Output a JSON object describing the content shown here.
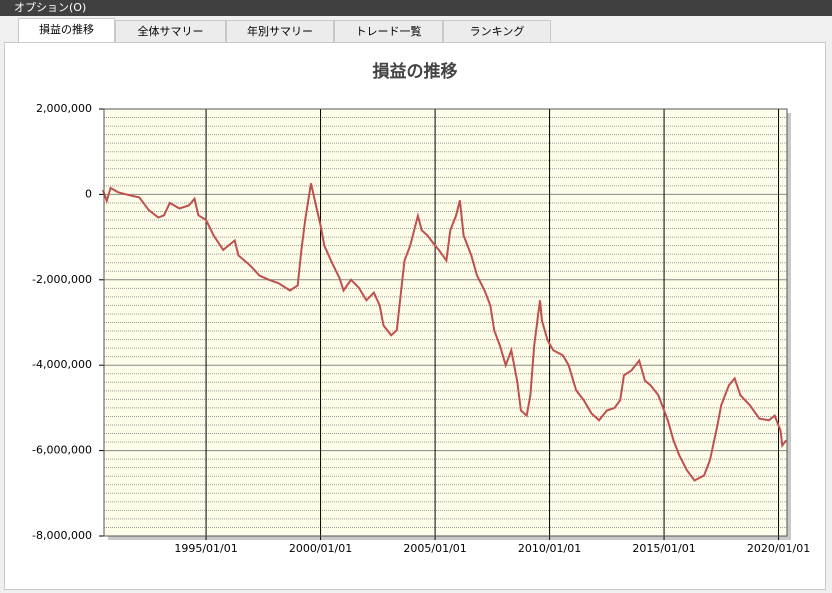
{
  "menu": {
    "label": "オプション(O)"
  },
  "tabs": [
    "損益の推移",
    "全体サマリー",
    "年別サマリー",
    "トレード一覧",
    "ランキング"
  ],
  "chart_data": {
    "type": "line",
    "title": "損益の推移",
    "color": "#c0504d",
    "x": [
      "1990/07/01",
      "1990/09/01",
      "1990/11/01",
      "1991/03/01",
      "1991/09/01",
      "1992/02/01",
      "1992/07/01",
      "1992/12/01",
      "1993/03/01",
      "1993/06/01",
      "1993/11/01",
      "1994/04/01",
      "1994/07/01",
      "1994/09/01",
      "1995/01/01",
      "1995/05/01",
      "1995/10/01",
      "1996/04/01",
      "1996/06/01",
      "1996/12/01",
      "1997/05/01",
      "1997/10/01",
      "1998/03/01",
      "1998/09/01",
      "1999/01/01",
      "1999/03/01",
      "1999/05/01",
      "1999/08/01",
      "1999/10/01",
      "2000/01/01",
      "2000/03/01",
      "2000/07/01",
      "2000/11/01",
      "2001/01/01",
      "2001/05/01",
      "2001/09/01",
      "2002/01/01",
      "2002/05/01",
      "2002/08/01",
      "2002/10/01",
      "2003/02/01",
      "2003/05/01",
      "2003/07/01",
      "2003/09/01",
      "2003/12/01",
      "2004/04/01",
      "2004/06/01",
      "2004/09/01",
      "2005/01/01",
      "2005/03/01",
      "2005/07/01",
      "2005/09/01",
      "2005/12/01",
      "2006/02/01",
      "2006/04/01",
      "2006/08/01",
      "2006/11/01",
      "2007/03/01",
      "2007/06/01",
      "2007/08/01",
      "2007/11/01",
      "2008/02/01",
      "2008/05/01",
      "2008/08/01",
      "2008/10/01",
      "2009/01/01",
      "2009/03/01",
      "2009/05/01",
      "2009/08/01",
      "2009/09/01",
      "2009/12/01",
      "2010/03/01",
      "2010/08/01",
      "2010/11/01",
      "2011/03/01",
      "2011/07/01",
      "2011/11/01",
      "2012/03/01",
      "2012/07/01",
      "2012/11/01",
      "2013/02/01",
      "2013/04/01",
      "2013/08/01",
      "2013/12/01",
      "2014/03/01",
      "2014/06/01",
      "2014/10/01",
      "2015/03/01",
      "2015/06/01",
      "2015/09/01",
      "2016/01/01",
      "2016/05/01",
      "2016/10/01",
      "2017/01/01",
      "2017/05/01",
      "2017/07/01",
      "2017/11/01",
      "2018/02/01",
      "2018/05/01",
      "2018/10/01",
      "2019/03/01",
      "2019/08/01",
      "2019/11/01",
      "2020/02/01",
      "2020/03/01",
      "2020/05/01"
    ],
    "values": [
      100000,
      -150000,
      150000,
      50000,
      -20000,
      -70000,
      -370000,
      -540000,
      -490000,
      -200000,
      -330000,
      -260000,
      -100000,
      -490000,
      -600000,
      -960000,
      -1300000,
      -1080000,
      -1430000,
      -1660000,
      -1900000,
      -2000000,
      -2080000,
      -2250000,
      -2130000,
      -1300000,
      -600000,
      260000,
      -140000,
      -720000,
      -1200000,
      -1600000,
      -1970000,
      -2250000,
      -2000000,
      -2180000,
      -2480000,
      -2300000,
      -2600000,
      -3070000,
      -3300000,
      -3180000,
      -2370000,
      -1550000,
      -1200000,
      -500000,
      -840000,
      -960000,
      -1200000,
      -1300000,
      -1550000,
      -840000,
      -500000,
      -140000,
      -960000,
      -1430000,
      -1900000,
      -2250000,
      -2600000,
      -3180000,
      -3540000,
      -4000000,
      -3650000,
      -4360000,
      -5060000,
      -5180000,
      -4700000,
      -3540000,
      -2480000,
      -2950000,
      -3420000,
      -3650000,
      -3770000,
      -4000000,
      -4590000,
      -4820000,
      -5130000,
      -5290000,
      -5060000,
      -5000000,
      -4820000,
      -4240000,
      -4120000,
      -3890000,
      -4360000,
      -4470000,
      -4700000,
      -5290000,
      -5760000,
      -6110000,
      -6460000,
      -6700000,
      -6580000,
      -6230000,
      -5410000,
      -4940000,
      -4470000,
      -4310000,
      -4700000,
      -4940000,
      -5250000,
      -5290000,
      -5180000,
      -5530000,
      -5880000,
      -5760000
    ],
    "xlim": [
      "1990/07/18",
      "2020/05/15"
    ],
    "xticks": [
      "1995/01/01",
      "2000/01/01",
      "2005/01/01",
      "2010/01/01",
      "2015/01/01",
      "2020/01/01"
    ],
    "ylim": [
      -8000000,
      2000000
    ],
    "yticks": [
      {
        "value": -8000000,
        "label": "-8,000,000"
      },
      {
        "value": -6000000,
        "label": "-6,000,000"
      },
      {
        "value": -4000000,
        "label": "-4,000,000"
      },
      {
        "value": -2000000,
        "label": "-2,000,000"
      },
      0,
      {
        "value": 2000000,
        "label": "2,000,000"
      }
    ],
    "grid": true
  }
}
